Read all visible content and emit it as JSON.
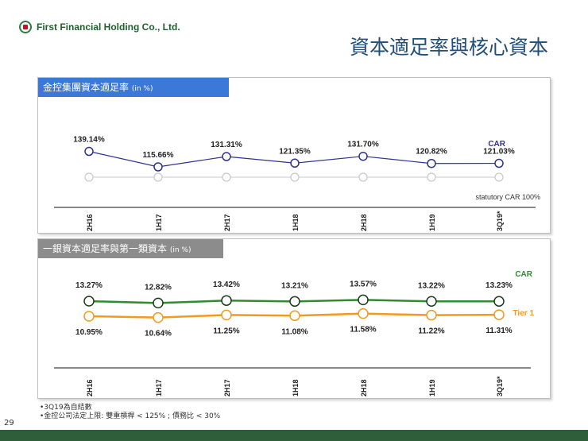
{
  "header": {
    "company": "First Financial Holding Co., Ltd.",
    "title": "資本適足率與核心資本"
  },
  "chart_data": [
    {
      "type": "line",
      "panel_label": "金控集團資本適足率",
      "unit": "(in %)",
      "categories": [
        "2H16",
        "1H17",
        "2H17",
        "1H18",
        "2H18",
        "1H19",
        "3Q19*"
      ],
      "series": [
        {
          "name": "CAR",
          "values": [
            139.14,
            115.66,
            131.31,
            121.35,
            131.7,
            120.82,
            121.03
          ],
          "labels": [
            "139.14%",
            "115.66%",
            "131.31%",
            "121.35%",
            "131.70%",
            "120.82%",
            "121.03%"
          ],
          "color": "#2e3192"
        },
        {
          "name": "statutory CAR 100%",
          "values": [
            100,
            100,
            100,
            100,
            100,
            100,
            100
          ],
          "color": "#c8c8c8"
        }
      ],
      "legend": {
        "car": "CAR",
        "statutory": "statutory CAR 100%"
      }
    },
    {
      "type": "line",
      "panel_label": "一銀資本適足率與第一類資本",
      "unit": "(in %)",
      "categories": [
        "2H16",
        "1H17",
        "2H17",
        "1H18",
        "2H18",
        "1H19",
        "3Q19*"
      ],
      "series": [
        {
          "name": "CAR",
          "values": [
            13.27,
            12.82,
            13.42,
            13.21,
            13.57,
            13.22,
            13.23
          ],
          "labels": [
            "13.27%",
            "12.82%",
            "13.42%",
            "13.21%",
            "13.57%",
            "13.22%",
            "13.23%"
          ],
          "color": "#2e8b2e"
        },
        {
          "name": "Tier 1",
          "values": [
            10.95,
            10.64,
            11.25,
            11.08,
            11.58,
            11.22,
            11.31
          ],
          "labels": [
            "10.95%",
            "10.64%",
            "11.25%",
            "11.08%",
            "11.58%",
            "11.22%",
            "11.31%"
          ],
          "color": "#f39a1e"
        }
      ],
      "legend": {
        "car": "CAR",
        "tier1": "Tier 1"
      }
    }
  ],
  "footnotes": [
    "•3Q19為自結數",
    "•金控公司法定上限: 雙重槓桿 < 125% ; 債務比 < 30%"
  ],
  "page_number": "29",
  "colors": {
    "title": "#1f4e79",
    "bottom_bar": "#2e5e3a"
  }
}
